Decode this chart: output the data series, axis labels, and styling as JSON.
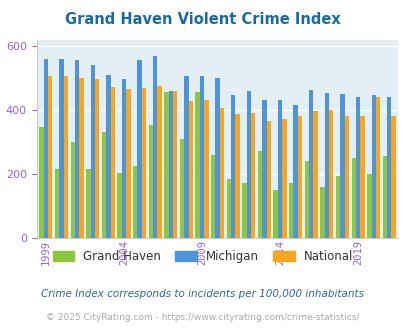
{
  "title": "Grand Haven Violent Crime Index",
  "years": [
    1999,
    2000,
    2001,
    2002,
    2003,
    2004,
    2005,
    2006,
    2007,
    2008,
    2009,
    2010,
    2011,
    2012,
    2013,
    2014,
    2015,
    2016,
    2017,
    2018,
    2019,
    2020,
    2021
  ],
  "grand_haven": [
    345,
    215,
    300,
    215,
    330,
    202,
    225,
    352,
    455,
    310,
    455,
    260,
    185,
    172,
    270,
    148,
    172,
    240,
    158,
    193,
    250,
    198,
    255
  ],
  "michigan": [
    558,
    558,
    555,
    540,
    510,
    498,
    555,
    570,
    460,
    505,
    505,
    500,
    448,
    460,
    430,
    430,
    415,
    462,
    452,
    450,
    440,
    445,
    440
  ],
  "national": [
    505,
    505,
    500,
    498,
    472,
    465,
    470,
    475,
    458,
    428,
    430,
    406,
    388,
    390,
    365,
    372,
    380,
    395,
    400,
    380,
    380,
    440,
    380
  ],
  "bar_colors": {
    "grand_haven": "#8dc63f",
    "michigan": "#4d94db",
    "national": "#f5a623"
  },
  "bg_color": "#e4eff5",
  "ylim": [
    0,
    620
  ],
  "yticks": [
    0,
    200,
    400,
    600
  ],
  "legend_labels": [
    "Grand Haven",
    "Michigan",
    "National"
  ],
  "note": "Crime Index corresponds to incidents per 100,000 inhabitants",
  "footer": "© 2025 CityRating.com - https://www.cityrating.com/crime-statistics/",
  "tick_years": [
    1999,
    2004,
    2009,
    2014,
    2019
  ],
  "title_color": "#1a6aa0",
  "tick_color": "#9966cc",
  "note_color": "#336699",
  "footer_color": "#aaaaaa",
  "grid_color": "#ffffff"
}
